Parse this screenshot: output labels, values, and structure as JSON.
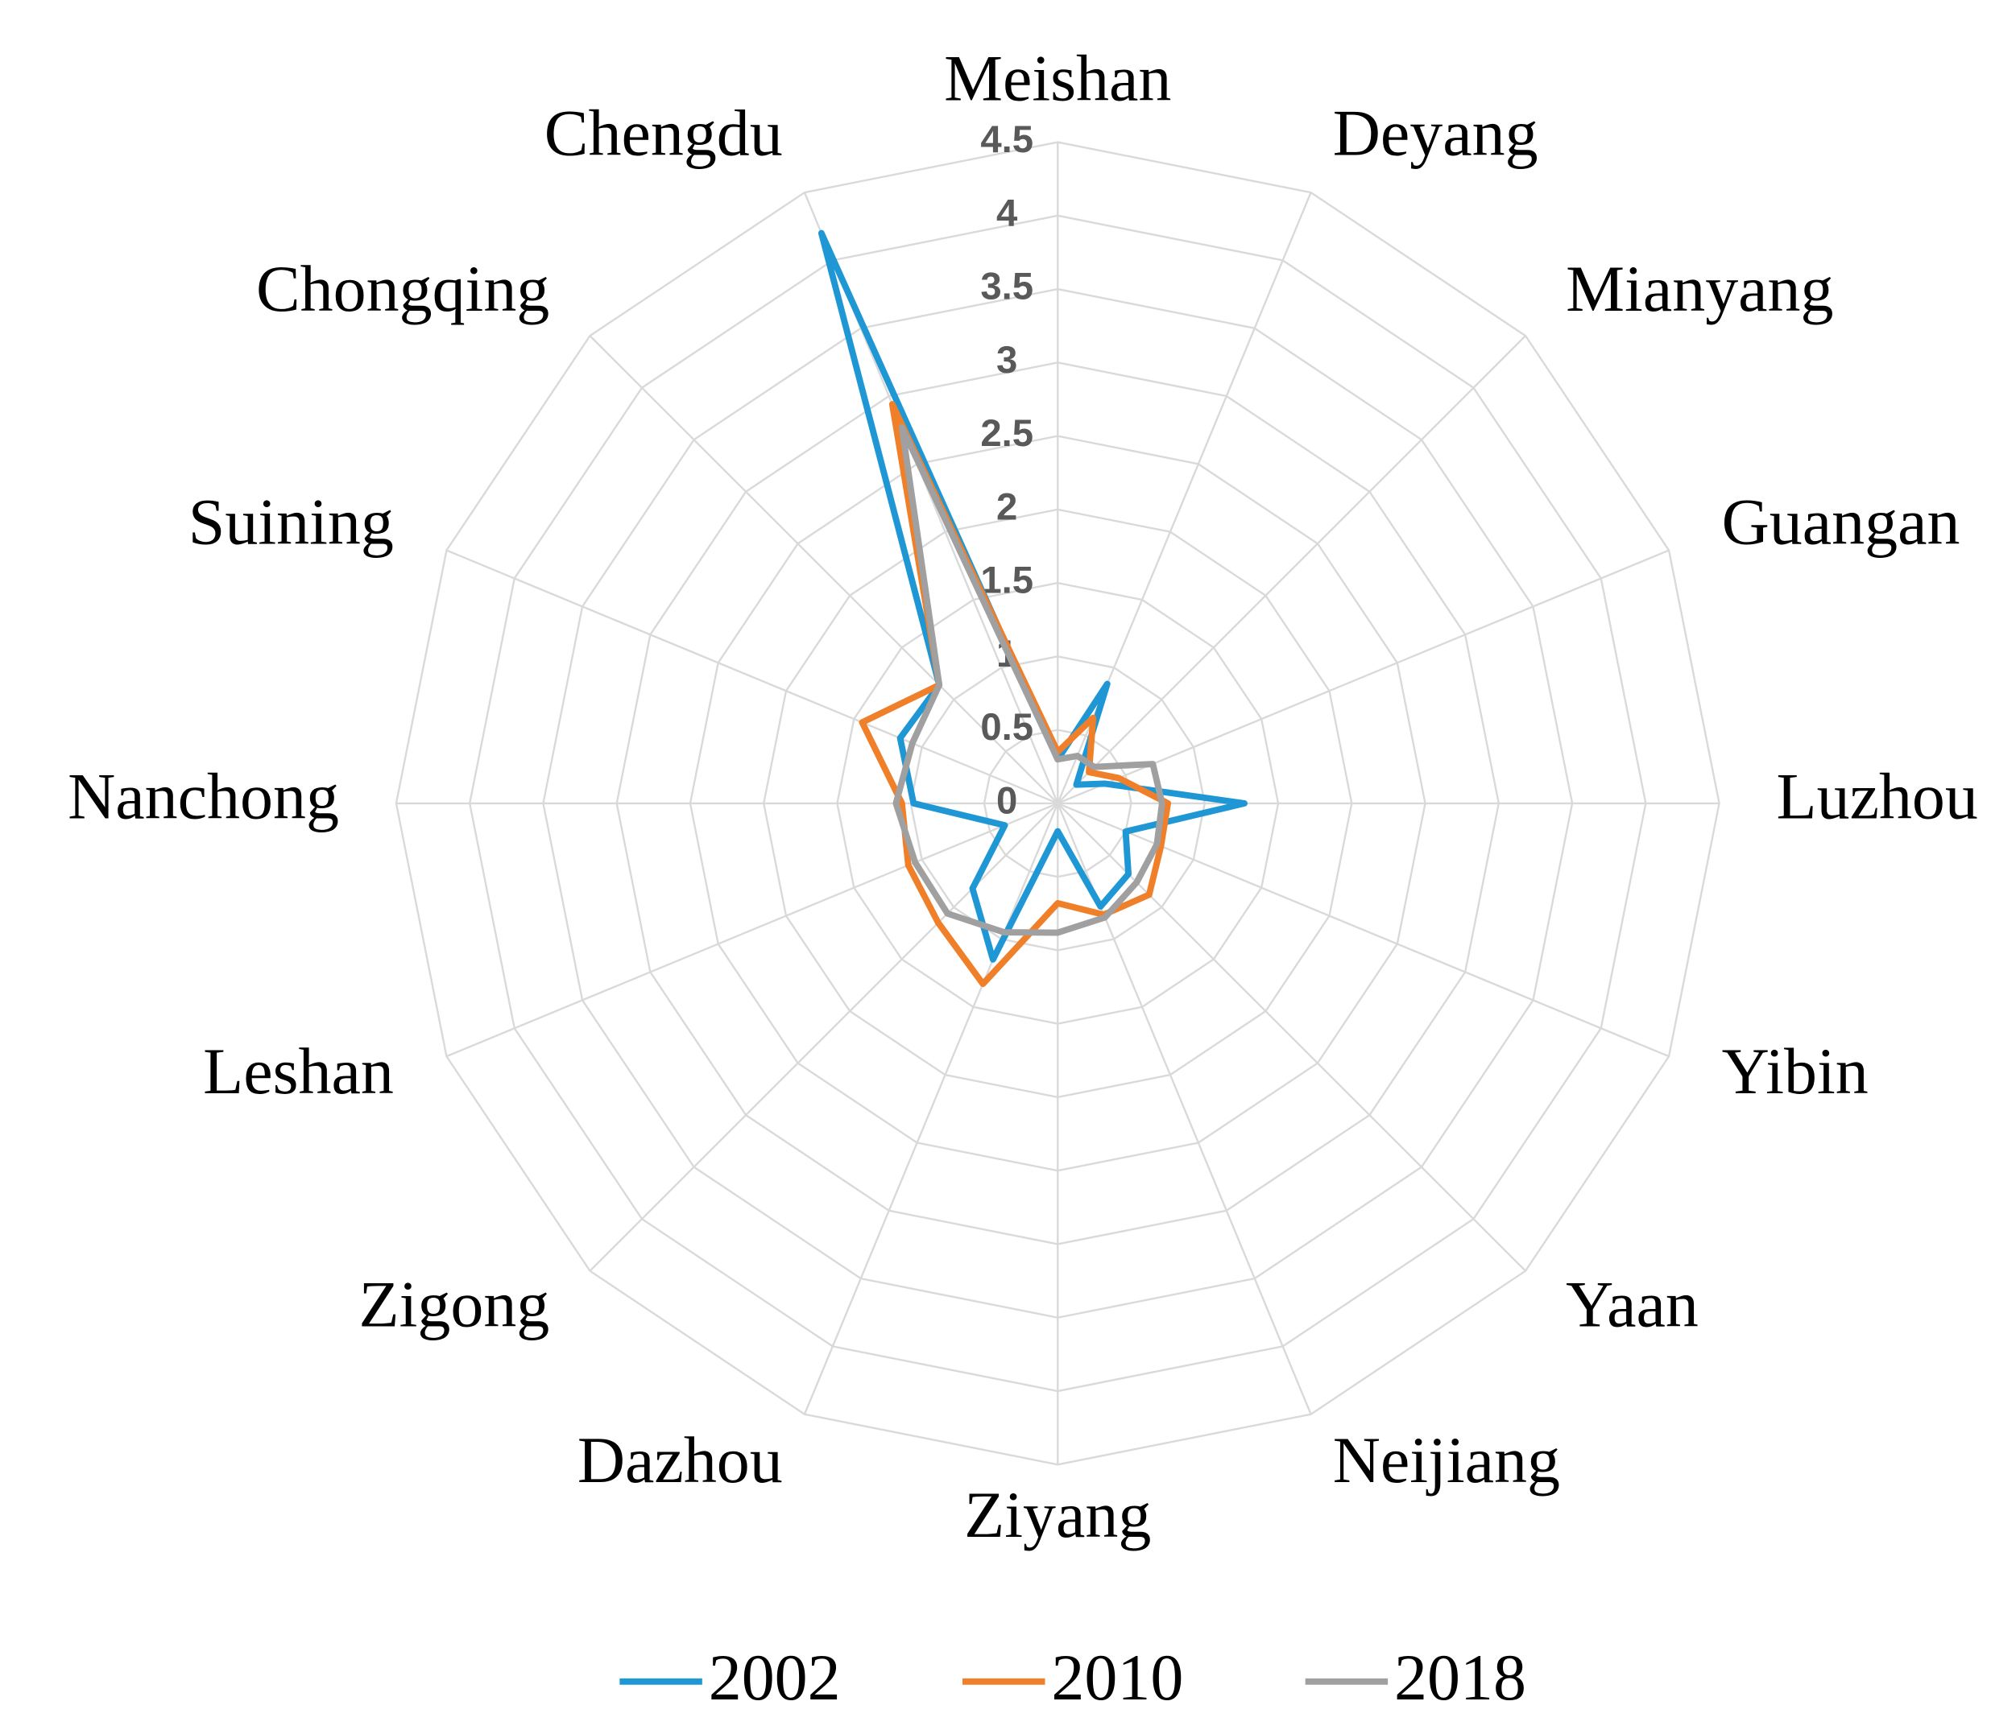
{
  "chart_data": {
    "type": "radar",
    "categories": [
      "Meishan",
      "Deyang",
      "Mianyang",
      "Guangan",
      "Luzhou",
      "Yibin",
      "Yaan",
      "Neijiang",
      "Ziyang",
      "Dazhou",
      "Zigong",
      "Leshan",
      "Nanchong",
      "Suining",
      "Chongqing",
      "Chengdu"
    ],
    "series": [
      {
        "name": "2002",
        "color": "#1f97d4",
        "values": [
          0.3,
          0.88,
          0.18,
          0.35,
          1.27,
          0.5,
          0.68,
          0.76,
          0.19,
          1.15,
          0.82,
          0.39,
          0.98,
          1.16,
          1.14,
          4.2
        ]
      },
      {
        "name": "2010",
        "color": "#f07f2a",
        "values": [
          0.35,
          0.63,
          0.3,
          0.45,
          0.75,
          0.76,
          0.88,
          0.82,
          0.68,
          1.33,
          1.15,
          1.1,
          1.06,
          1.44,
          1.14,
          2.94
        ]
      },
      {
        "name": "2018",
        "color": "#a0a0a0",
        "values": [
          0.3,
          0.35,
          0.35,
          0.7,
          0.71,
          0.73,
          0.76,
          0.84,
          0.88,
          0.95,
          1.06,
          1.05,
          1.1,
          1.07,
          1.14,
          2.77
        ]
      }
    ],
    "ylim": [
      0,
      4.5
    ],
    "yticks": [
      0,
      0.5,
      1,
      1.5,
      2,
      2.5,
      3,
      3.5,
      4,
      4.5
    ],
    "grid": true,
    "legend": "bottom"
  }
}
